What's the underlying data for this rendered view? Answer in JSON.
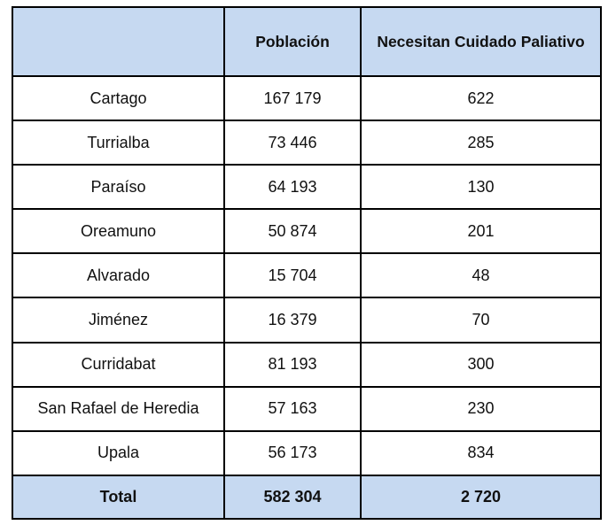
{
  "table": {
    "headers": [
      "",
      "Población",
      "Necesitan Cuidado Paliativo"
    ],
    "rows": [
      {
        "name": "Cartago",
        "poblacion": "167 179",
        "paliativo": "622"
      },
      {
        "name": "Turrialba",
        "poblacion": "73 446",
        "paliativo": "285"
      },
      {
        "name": "Paraíso",
        "poblacion": "64 193",
        "paliativo": "130"
      },
      {
        "name": "Oreamuno",
        "poblacion": "50 874",
        "paliativo": "201"
      },
      {
        "name": "Alvarado",
        "poblacion": "15 704",
        "paliativo": "48"
      },
      {
        "name": "Jiménez",
        "poblacion": "16 379",
        "paliativo": "70"
      },
      {
        "name": "Curridabat",
        "poblacion": "81 193",
        "paliativo": "300"
      },
      {
        "name": "San Rafael de Heredia",
        "poblacion": "57 163",
        "paliativo": "230"
      },
      {
        "name": "Upala",
        "poblacion": "56 173",
        "paliativo": "834"
      }
    ],
    "total": {
      "name": "Total",
      "poblacion": "582 304",
      "paliativo": "2 720"
    }
  },
  "colors": {
    "header_fill": "#c6d9f1",
    "border": "#000000"
  }
}
